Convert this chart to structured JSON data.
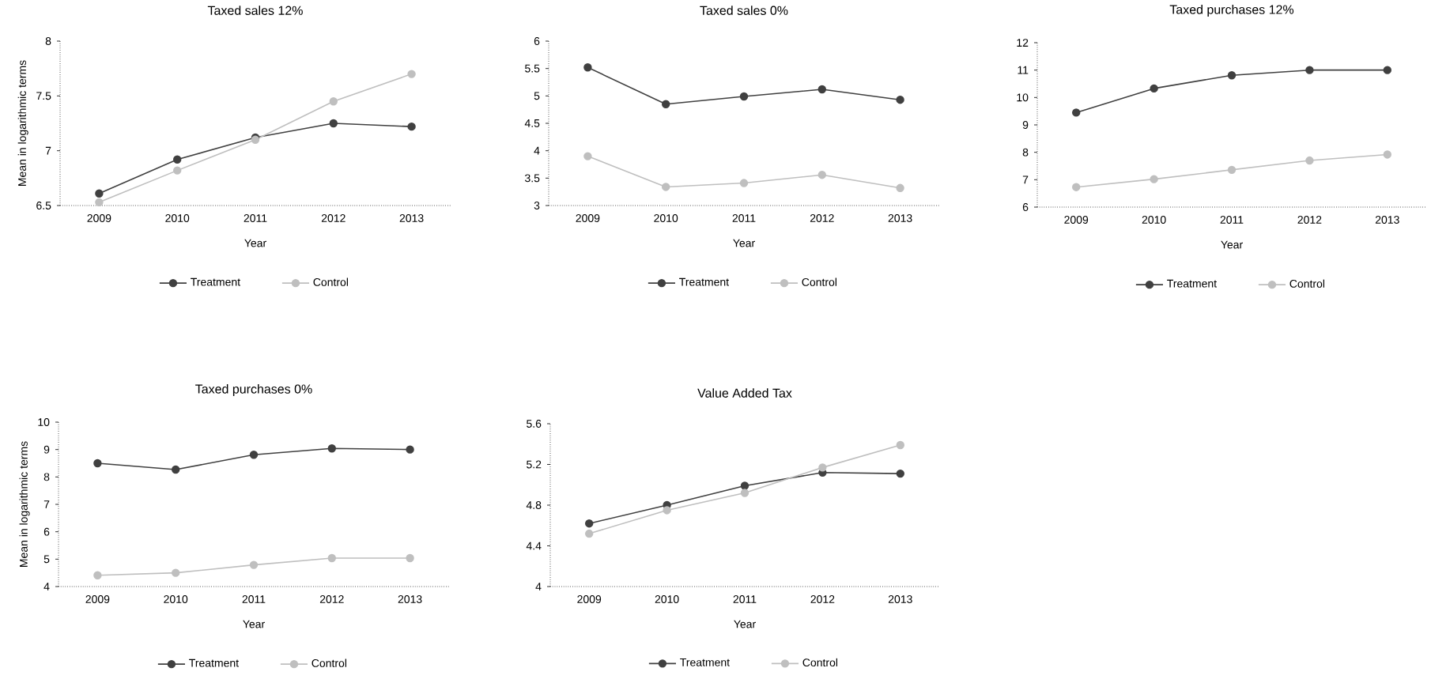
{
  "chart_data": [
    {
      "type": "line",
      "title": "Taxed sales 12%",
      "xlabel": "Year",
      "ylabel": "Mean in logarithmic terms",
      "categories": [
        "2009",
        "2010",
        "2011",
        "2012",
        "2013"
      ],
      "series": [
        {
          "name": "Treatment",
          "color": "#404040",
          "values": [
            6.61,
            6.92,
            7.12,
            7.25,
            7.22
          ]
        },
        {
          "name": "Control",
          "color": "#bfbfbf",
          "values": [
            6.53,
            6.82,
            7.1,
            7.45,
            7.7
          ]
        }
      ],
      "ylim": [
        6.5,
        8
      ],
      "yticks": [
        6.5,
        7,
        7.5,
        8
      ],
      "legend": "bottom",
      "marker": "circle"
    },
    {
      "type": "line",
      "title": "Taxed sales 0%",
      "xlabel": "Year",
      "categories": [
        "2009",
        "2010",
        "2011",
        "2012",
        "2013"
      ],
      "series": [
        {
          "name": "Treatment",
          "color": "#404040",
          "values": [
            5.52,
            4.85,
            4.99,
            5.12,
            4.93
          ]
        },
        {
          "name": "Control",
          "color": "#bfbfbf",
          "values": [
            3.9,
            3.34,
            3.41,
            3.56,
            3.32
          ]
        }
      ],
      "ylim": [
        3,
        6
      ],
      "yticks": [
        3,
        3.5,
        4,
        4.5,
        5,
        5.5,
        6
      ],
      "legend": "bottom",
      "marker": "circle"
    },
    {
      "type": "line",
      "title": "Taxed purchases 12%",
      "xlabel": "Year",
      "categories": [
        "2009",
        "2010",
        "2011",
        "2012",
        "2013"
      ],
      "series": [
        {
          "name": "Treatment",
          "color": "#404040",
          "values": [
            9.45,
            10.33,
            10.81,
            11.0,
            11.0
          ]
        },
        {
          "name": "Control",
          "color": "#bfbfbf",
          "values": [
            6.73,
            7.02,
            7.36,
            7.7,
            7.92
          ]
        }
      ],
      "ylim": [
        6,
        12
      ],
      "yticks": [
        6,
        7,
        8,
        9,
        10,
        11,
        12
      ],
      "legend": "bottom",
      "marker": "circle"
    },
    {
      "type": "line",
      "title": "Taxed purchases 0%",
      "xlabel": "Year",
      "ylabel": "Mean in logarithmic terms",
      "categories": [
        "2009",
        "2010",
        "2011",
        "2012",
        "2013"
      ],
      "series": [
        {
          "name": "Treatment",
          "color": "#404040",
          "values": [
            8.5,
            8.27,
            8.81,
            9.04,
            9.0
          ]
        },
        {
          "name": "Control",
          "color": "#bfbfbf",
          "values": [
            4.41,
            4.5,
            4.79,
            5.04,
            5.04
          ]
        }
      ],
      "ylim": [
        4,
        10
      ],
      "yticks": [
        4,
        5,
        6,
        7,
        8,
        9,
        10
      ],
      "legend": "bottom",
      "marker": "circle"
    },
    {
      "type": "line",
      "title": "Value Added Tax",
      "xlabel": "Year",
      "categories": [
        "2009",
        "2010",
        "2011",
        "2012",
        "2013"
      ],
      "series": [
        {
          "name": "Treatment",
          "color": "#404040",
          "values": [
            4.62,
            4.8,
            4.99,
            5.12,
            5.11
          ]
        },
        {
          "name": "Control",
          "color": "#bfbfbf",
          "values": [
            4.52,
            4.75,
            4.92,
            5.17,
            5.39
          ]
        }
      ],
      "ylim": [
        4,
        5.6
      ],
      "yticks": [
        4,
        4.4,
        4.8,
        5.2,
        5.6
      ],
      "legend": "bottom",
      "marker": "circle"
    }
  ]
}
